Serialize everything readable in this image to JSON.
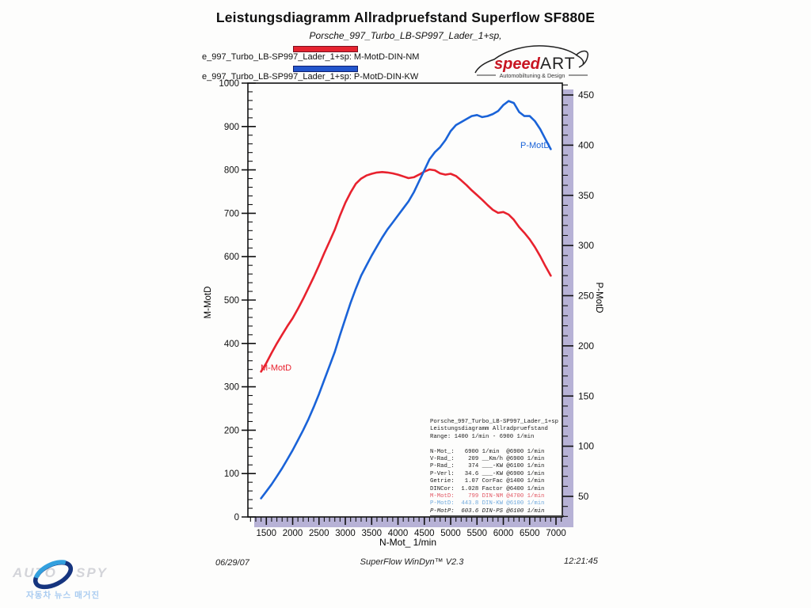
{
  "page": {
    "title": "Leistungsdiagramm Allradpruefstand Superflow SF880E",
    "subtitle": "Porsche_997_Turbo_LB-SP997_Lader_1+sp,"
  },
  "legend": {
    "entries": [
      {
        "label": "e_997_Turbo_LB-SP997_Lader_1+sp: M-MotD-DIN-NM",
        "color": "#e62430",
        "border": "#7a1020"
      },
      {
        "label": "e_997_Turbo_LB-SP997_Lader_1+sp: P-MotD-DIN-KW",
        "color": "#2255cc",
        "border": "#101f6e"
      }
    ]
  },
  "logo": {
    "speed": "speed",
    "art": "ART",
    "tagline": "Automobiltuning & Design",
    "speed_color": "#c81522"
  },
  "chart_data": {
    "type": "line",
    "x_axis": {
      "label": "N-Mot_ 1/min",
      "tick_labels": [
        1500,
        2000,
        2500,
        3000,
        3500,
        4000,
        4500,
        5000,
        5500,
        6000,
        6500,
        7000
      ],
      "minor_step": 100
    },
    "left_axis": {
      "label": "M-MotD",
      "unit": "NM",
      "tick_labels": [
        0,
        100,
        200,
        300,
        400,
        500,
        600,
        700,
        800,
        900,
        1000
      ],
      "minor_step": 20,
      "range": [
        0,
        1000
      ]
    },
    "right_axis": {
      "label": "P-MotD",
      "unit": "KW",
      "tick_labels": [
        50,
        100,
        150,
        200,
        250,
        300,
        350,
        400,
        450
      ],
      "minor_step": 10
    },
    "rpm": [
      1400,
      1500,
      1600,
      1700,
      1800,
      1900,
      2000,
      2100,
      2200,
      2300,
      2400,
      2500,
      2600,
      2700,
      2800,
      2900,
      3000,
      3100,
      3200,
      3300,
      3400,
      3500,
      3600,
      3700,
      3800,
      3900,
      4000,
      4100,
      4200,
      4300,
      4400,
      4500,
      4600,
      4700,
      4800,
      4900,
      5000,
      5100,
      5200,
      5300,
      5400,
      5500,
      5600,
      5700,
      5800,
      5900,
      6000,
      6100,
      6200,
      6300,
      6400,
      6500,
      6600,
      6700,
      6800,
      6900
    ],
    "series": [
      {
        "name": "Porsche_997_Turbo_LB-SP997_Lader_1+sp: M-MotD-DIN-NM",
        "short_label": "M-MotD",
        "axis": "left",
        "color": "#e8222e",
        "values": [
          335,
          355,
          378,
          400,
          420,
          440,
          458,
          480,
          503,
          528,
          553,
          580,
          608,
          635,
          662,
          695,
          724,
          748,
          768,
          780,
          787,
          791,
          794,
          795,
          794,
          792,
          789,
          785,
          781,
          783,
          789,
          796,
          801,
          799,
          792,
          789,
          791,
          786,
          776,
          765,
          753,
          742,
          731,
          719,
          708,
          701,
          703,
          697,
          685,
          668,
          655,
          640,
          622,
          601,
          578,
          556
        ]
      },
      {
        "name": "Porsche_997_Turbo_LB-SP997_Lader_1+sp: P-MotD-DIN-KW",
        "short_label": "P-MotD",
        "axis": "right",
        "color": "#1a63d8",
        "values": [
          48,
          55,
          62,
          70,
          78,
          87,
          96,
          106,
          116,
          127,
          139,
          152,
          166,
          180,
          194,
          211,
          227,
          243,
          257,
          270,
          280,
          290,
          299,
          308,
          316,
          323,
          330,
          337,
          344,
          353,
          364,
          375,
          386,
          393,
          398,
          405,
          414,
          420,
          423,
          426,
          429,
          430,
          428,
          429,
          431,
          434,
          440,
          444,
          442,
          433,
          429,
          429,
          424,
          416,
          406,
          396
        ]
      }
    ],
    "shadow_color": "#b7b2d6"
  },
  "info_table": {
    "rows": [
      {
        "text": "Porsche_997_Turbo_LB-SP997_Lader_1+sp",
        "color": "#1a1a1a"
      },
      {
        "text": "Leistungsdiagramm Allradpruefstand",
        "color": "#1a1a1a"
      },
      {
        "text": "Range: 1400 1/min - 6900 1/min",
        "color": "#1a1a1a"
      },
      {
        "text": " ",
        "color": "#1a1a1a"
      },
      {
        "text": "N-Mot_:   6900 1/min  @6900 1/min",
        "color": "#1a1a1a"
      },
      {
        "text": "V-Rad_:    209 __Km/h @6900 1/min",
        "color": "#1a1a1a"
      },
      {
        "text": "P-Rad_:    374 ___-KW @6100 1/min",
        "color": "#1a1a1a"
      },
      {
        "text": "P-Verl:   34.6 ___-KW @6900 1/min",
        "color": "#1a1a1a"
      },
      {
        "text": "Getrie:   1.07 CorFac @1400 1/min",
        "color": "#1a1a1a"
      },
      {
        "text": "DINCor:  1.028 Factor @6400 1/min",
        "color": "#1a1a1a"
      },
      {
        "text": "M-MotD:    799 DIN-NM @4700 1/min",
        "color": "#e25763"
      },
      {
        "text": "P-MotD:  443.8 DIN-KW @6100 1/min",
        "color": "#6fa8dc"
      },
      {
        "text": "P-MotP:  603.6 DIN-PS @6100 1/min",
        "color": "#1a1a1a",
        "last": true
      }
    ]
  },
  "footer": {
    "date": "06/29/07",
    "app": "SuperFlow WinDyn™ V2.3",
    "time": "12:21:45"
  },
  "watermark": {
    "word1": "AUTO",
    "word2": "SPY",
    "tagline": "자동차 뉴스 매거진"
  }
}
